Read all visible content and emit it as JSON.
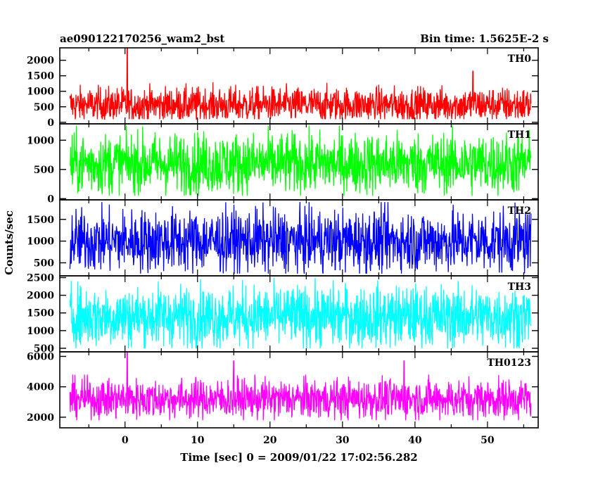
{
  "header": {
    "title": "ae090122170256_wam2_bst",
    "bin_time": "Bin time: 1.5625E-2 s"
  },
  "chart_data": {
    "type": "line",
    "title": "ae090122170256_wam2_bst",
    "subtitle": "Bin time: 1.5625E-2 s",
    "xlabel": "Time [sec] 0 = 2009/01/22 17:02:56.282",
    "ylabel": "Counts/sec",
    "xlim": [
      -9,
      57
    ],
    "x_ticks": [
      0,
      10,
      20,
      30,
      40,
      50
    ],
    "x_tick_labels": [
      "0",
      "10",
      "20",
      "30",
      "40",
      "50"
    ],
    "x_data_range": [
      -7.6,
      56.0
    ],
    "grid": false,
    "panels": [
      {
        "name": "TH0",
        "color": "#ff0000",
        "ylim": [
          -50,
          2400
        ],
        "y_ticks": [
          0,
          500,
          1000,
          1500,
          2000
        ],
        "y_tick_labels": [
          "0",
          "500",
          "1000",
          "1500",
          "2000"
        ],
        "mean": 560,
        "typical_range": [
          100,
          1400
        ],
        "spikes": [
          {
            "x": 0.3,
            "y": 2400
          },
          {
            "x": 48.0,
            "y": 1650
          }
        ]
      },
      {
        "name": "TH1",
        "color": "#00ff00",
        "ylim": [
          -20,
          1280
        ],
        "y_ticks": [
          0,
          500,
          1000
        ],
        "y_tick_labels": [
          "0",
          "500",
          "1000"
        ],
        "mean": 600,
        "typical_range": [
          50,
          1250
        ],
        "spikes": []
      },
      {
        "name": "TH2",
        "color": "#0000ff",
        "ylim": [
          200,
          1950
        ],
        "y_ticks": [
          500,
          1000,
          1500
        ],
        "y_tick_labels": [
          "500",
          "1000",
          "1500"
        ],
        "mean": 1000,
        "typical_range": [
          250,
          1900
        ],
        "spikes": []
      },
      {
        "name": "TH3",
        "color": "#00ffff",
        "ylim": [
          400,
          2550
        ],
        "y_ticks": [
          500,
          1000,
          1500,
          2000,
          2500
        ],
        "y_tick_labels": [
          "500",
          "1000",
          "1500",
          "2000",
          "2500"
        ],
        "mean": 1400,
        "typical_range": [
          500,
          2500
        ],
        "spikes": []
      },
      {
        "name": "TH0123",
        "color": "#ff00ff",
        "ylim": [
          1300,
          6300
        ],
        "y_ticks": [
          2000,
          4000,
          6000
        ],
        "y_tick_labels": [
          "2000",
          "4000",
          "6000"
        ],
        "mean": 3200,
        "typical_range": [
          1800,
          4800
        ],
        "spikes": [
          {
            "x": 0.3,
            "y": 6300
          },
          {
            "x": 15.0,
            "y": 5700
          },
          {
            "x": 38.5,
            "y": 5700
          }
        ]
      }
    ]
  }
}
